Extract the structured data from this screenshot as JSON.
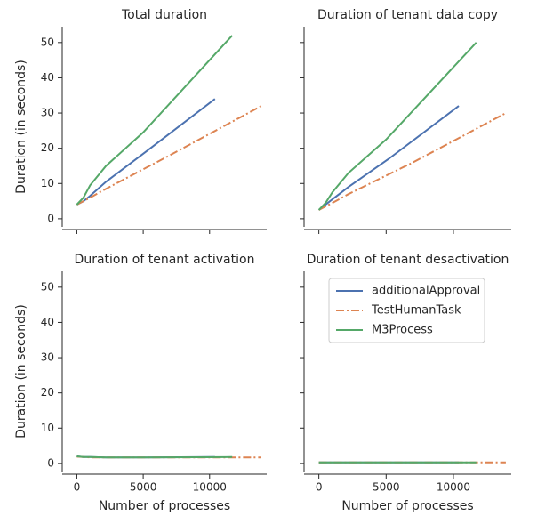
{
  "chart_data": [
    {
      "type": "line",
      "title": "Total duration",
      "ylabel": "Duration (in seconds)",
      "xlim": [
        -1100,
        14300
      ],
      "ylim": [
        -2.3,
        54.5
      ],
      "xticks": [
        0,
        5000,
        10000
      ],
      "yticks": [
        0,
        10,
        20,
        30,
        40,
        50
      ],
      "series": [
        {
          "name": "additionalApproval",
          "color": "#4c72b0",
          "linestyle": "solid",
          "x": [
            0,
            500,
            1000,
            2200,
            5200,
            10400
          ],
          "values": [
            4,
            5,
            6.5,
            10.5,
            19,
            34
          ]
        },
        {
          "name": "TestHumanTask",
          "color": "#dd8452",
          "linestyle": "dashdot",
          "x": [
            0,
            500,
            1000,
            2200,
            7000,
            13900
          ],
          "values": [
            4,
            5,
            6,
            8.5,
            18,
            32
          ]
        },
        {
          "name": "M3Process",
          "color": "#55a868",
          "linestyle": "solid",
          "x": [
            0,
            500,
            1000,
            2200,
            5000,
            11700
          ],
          "values": [
            4,
            6,
            9.5,
            15,
            24.5,
            52
          ]
        }
      ]
    },
    {
      "type": "line",
      "title": "Duration of tenant data copy",
      "xlim": [
        -1100,
        14300
      ],
      "ylim": [
        -2.3,
        54.5
      ],
      "xticks": [
        0,
        5000,
        10000
      ],
      "yticks": [
        0,
        10,
        20,
        30,
        40,
        50
      ],
      "series": [
        {
          "name": "additionalApproval",
          "color": "#4c72b0",
          "linestyle": "solid",
          "x": [
            0,
            500,
            1000,
            2200,
            5200,
            10400
          ],
          "values": [
            2.5,
            4,
            5.5,
            9,
            17,
            32
          ]
        },
        {
          "name": "TestHumanTask",
          "color": "#dd8452",
          "linestyle": "dashdot",
          "x": [
            0,
            500,
            1000,
            2200,
            7000,
            13900
          ],
          "values": [
            2.5,
            3.5,
            4.5,
            7,
            16,
            30
          ]
        },
        {
          "name": "M3Process",
          "color": "#55a868",
          "linestyle": "solid",
          "x": [
            0,
            500,
            1000,
            2200,
            5000,
            11700
          ],
          "values": [
            2.5,
            4.5,
            7.5,
            13,
            22.5,
            50
          ]
        }
      ]
    },
    {
      "type": "line",
      "title": "Duration of tenant activation",
      "ylabel": "Duration (in seconds)",
      "xlabel": "Number of processes",
      "xlim": [
        -1100,
        14300
      ],
      "ylim": [
        -2.3,
        54.5
      ],
      "xticks": [
        0,
        5000,
        10000
      ],
      "yticks": [
        0,
        10,
        20,
        30,
        40,
        50
      ],
      "series": [
        {
          "name": "additionalApproval",
          "color": "#4c72b0",
          "linestyle": "solid",
          "x": [
            0,
            500,
            1000,
            2200,
            5200,
            10400
          ],
          "values": [
            2,
            1.8,
            1.8,
            1.7,
            1.7,
            1.8
          ]
        },
        {
          "name": "TestHumanTask",
          "color": "#dd8452",
          "linestyle": "dashdot",
          "x": [
            0,
            500,
            1000,
            2200,
            7000,
            13900
          ],
          "values": [
            1.9,
            1.8,
            1.7,
            1.7,
            1.7,
            1.7
          ]
        },
        {
          "name": "M3Process",
          "color": "#55a868",
          "linestyle": "solid",
          "x": [
            0,
            500,
            1000,
            2200,
            5000,
            11700
          ],
          "values": [
            2,
            1.8,
            1.8,
            1.7,
            1.7,
            1.8
          ]
        }
      ]
    },
    {
      "type": "line",
      "title": "Duration of tenant desactivation",
      "xlabel": "Number of processes",
      "legend": "upper right",
      "xlim": [
        -1100,
        14300
      ],
      "ylim": [
        -2.3,
        54.5
      ],
      "xticks": [
        0,
        5000,
        10000
      ],
      "yticks": [
        0,
        10,
        20,
        30,
        40,
        50
      ],
      "series": [
        {
          "name": "additionalApproval",
          "color": "#4c72b0",
          "linestyle": "solid",
          "x": [
            0,
            500,
            1000,
            2200,
            5200,
            10400
          ],
          "values": [
            0.3,
            0.3,
            0.3,
            0.3,
            0.3,
            0.3
          ]
        },
        {
          "name": "TestHumanTask",
          "color": "#dd8452",
          "linestyle": "dashdot",
          "x": [
            0,
            500,
            1000,
            2200,
            7000,
            13900
          ],
          "values": [
            0.3,
            0.3,
            0.3,
            0.3,
            0.3,
            0.3
          ]
        },
        {
          "name": "M3Process",
          "color": "#55a868",
          "linestyle": "solid",
          "x": [
            0,
            500,
            1000,
            2200,
            5000,
            11700
          ],
          "values": [
            0.3,
            0.3,
            0.3,
            0.3,
            0.3,
            0.3
          ]
        }
      ]
    }
  ]
}
